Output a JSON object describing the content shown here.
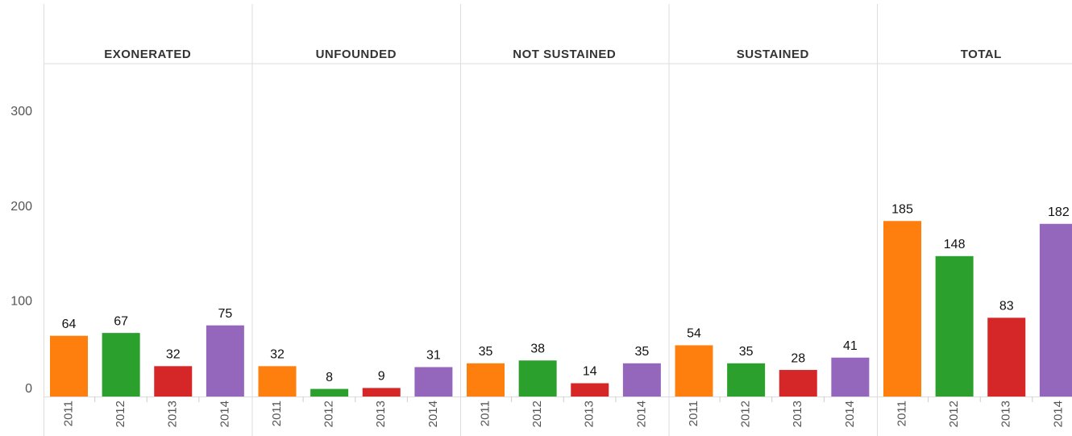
{
  "chart_data": {
    "type": "bar",
    "categories": [
      "2011",
      "2012",
      "2013",
      "2014"
    ],
    "colors": [
      "#ff7f0e",
      "#2ca02c",
      "#d62728",
      "#9467bd"
    ],
    "panels": [
      {
        "name": "EXONERATED",
        "values": [
          64,
          67,
          32,
          75
        ]
      },
      {
        "name": "UNFOUNDED",
        "values": [
          32,
          8,
          9,
          31
        ]
      },
      {
        "name": "NOT SUSTAINED",
        "values": [
          35,
          38,
          14,
          35
        ]
      },
      {
        "name": "SUSTAINED",
        "values": [
          54,
          35,
          28,
          41
        ]
      },
      {
        "name": "TOTAL",
        "values": [
          185,
          148,
          83,
          182
        ]
      }
    ],
    "ylim": [
      0,
      350
    ],
    "yticks": [
      0,
      100,
      200,
      300
    ],
    "grid": false
  }
}
